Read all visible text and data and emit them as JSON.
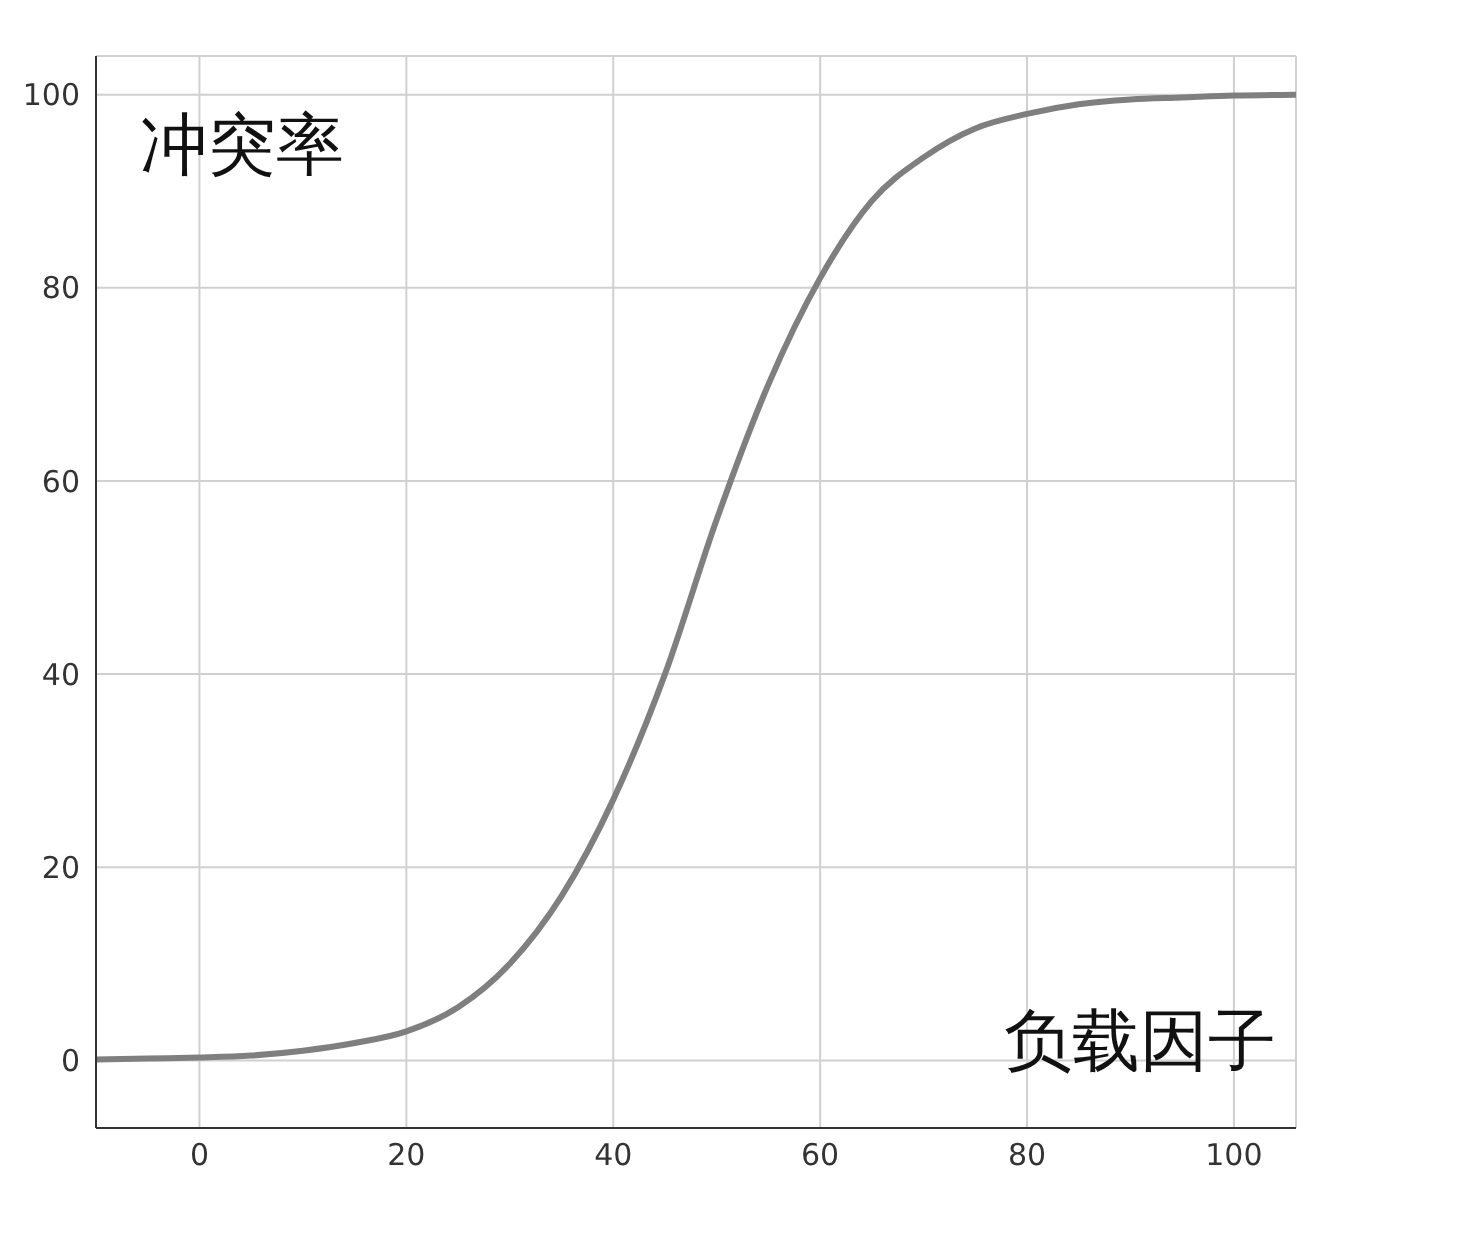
{
  "chart_data": {
    "type": "line",
    "xlabel": "负载因子",
    "ylabel": "冲突率",
    "x": [
      -10,
      -5,
      0,
      5,
      10,
      15,
      20,
      25,
      30,
      35,
      40,
      45,
      50,
      55,
      60,
      65,
      70,
      75,
      80,
      85,
      90,
      95,
      100,
      106
    ],
    "series": [
      {
        "color": "#7f7f7f",
        "values": [
          0.1,
          0.2,
          0.3,
          0.5,
          1,
          1.8,
          3,
          5.5,
          10,
          17,
          27,
          40,
          56,
          70,
          81,
          89,
          93.5,
          96.5,
          98,
          99,
          99.5,
          99.7,
          99.9,
          100
        ]
      }
    ],
    "xlim": [
      -10,
      106
    ],
    "xticks": [
      0,
      20,
      40,
      60,
      80,
      100
    ],
    "ylim": [
      -7,
      104
    ],
    "yticks": [
      0,
      20,
      40,
      60,
      80,
      100
    ],
    "grid": true,
    "marker": "none",
    "line_style": "solid",
    "legend": false
  }
}
